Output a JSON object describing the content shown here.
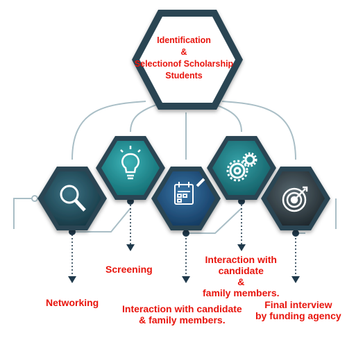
{
  "title": {
    "line1": "Identification",
    "line2": "&",
    "line3": "Selectionof Scholarship",
    "line4": "Students"
  },
  "steps": [
    {
      "icon": "magnifier-icon",
      "label": [
        "Networking"
      ]
    },
    {
      "icon": "lightbulb-icon",
      "label": [
        "Screening"
      ]
    },
    {
      "icon": "planner-pencil-icon",
      "label": [
        "Interaction with candidate",
        "& family members."
      ]
    },
    {
      "icon": "gears-icon",
      "label": [
        "Interaction with",
        "candidate",
        "&",
        "family members."
      ]
    },
    {
      "icon": "target-icon",
      "label": [
        "Final interview",
        "by funding agency"
      ]
    }
  ],
  "colors": {
    "text": "#e8140c",
    "hex_border": "#2a4552",
    "connector": "#a9bec6",
    "arrow": "#203a4c",
    "step_fills": [
      "#1f4a5a",
      "#1f8a90",
      "#1d4d78",
      "#1f7a82",
      "#2e3a40"
    ]
  }
}
